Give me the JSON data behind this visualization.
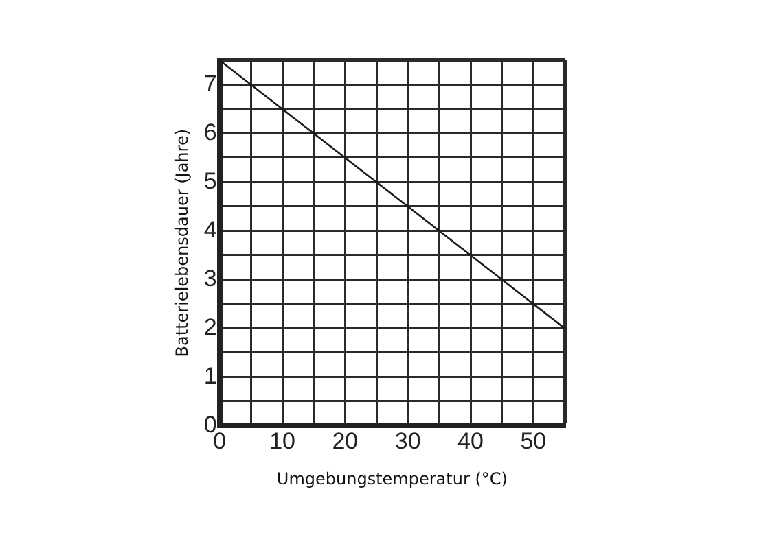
{
  "chart_data": {
    "type": "line",
    "xlabel": "Umgebungstemperatur (°C)",
    "ylabel": "Batterielebensdauer (Jahre)",
    "x": [
      0,
      55
    ],
    "series": [
      {
        "color": "#1a1a1a",
        "values": [
          7.5,
          2
        ]
      }
    ],
    "xlim": [
      0,
      55
    ],
    "xticks": [
      0,
      {
        "value": 5,
        "label": null
      },
      10,
      {
        "value": 15,
        "label": null
      },
      20,
      {
        "value": 25,
        "label": null
      },
      30,
      {
        "value": 35,
        "label": null
      },
      40,
      {
        "value": 45,
        "label": null
      },
      50,
      {
        "value": 55,
        "label": null
      }
    ],
    "ylim": [
      0,
      7.5
    ],
    "yticks": [
      0,
      {
        "value": 0.5,
        "label": null
      },
      1,
      {
        "value": 1.5,
        "label": null
      },
      2,
      {
        "value": 2.5,
        "label": null
      },
      3,
      {
        "value": 3.5,
        "label": null
      },
      4,
      {
        "value": 4.5,
        "label": null
      },
      5,
      {
        "value": 5.5,
        "label": null
      },
      6,
      {
        "value": 6.5,
        "label": null
      },
      7,
      {
        "value": 7.5,
        "label": null
      }
    ],
    "grid": true,
    "legend": false,
    "marker": "none",
    "line_style": "solid"
  }
}
